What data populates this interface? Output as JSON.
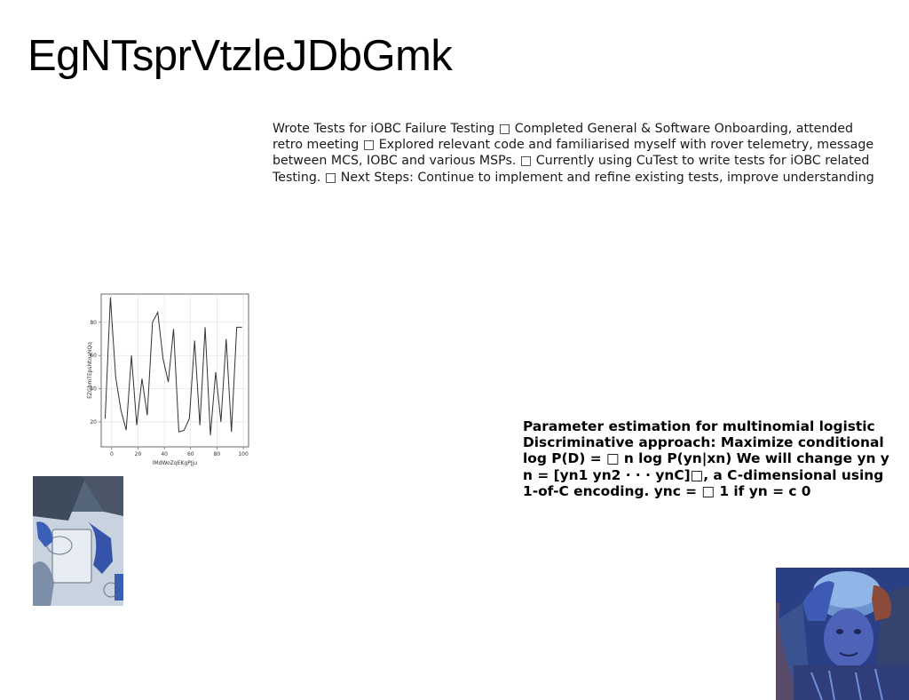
{
  "slide": {
    "title": "EgNTsprVtzleJDbGmk",
    "body_text": "Wrote Tests for iOBC Failure Testing □ Completed General & Software Onboarding, attended retro meeting □ Explored relevant code and familiarised myself with rover telemetry, message between MCS, IOBC and various MSPs. □ Currently using CuTest to write tests for iOBC related Testing. □ Next Steps: Continue to implement and refine existing tests, improve understanding",
    "side_text": "Parameter estimation for multinomial logistic Discriminative approach: Maximize conditional log P(D) = □ n log P(yn|xn) We will change yn y n = [yn1 yn2 · · · ynC]□, a C-dimensional using 1-of-C encoding. ync = □ 1 if yn = c 0"
  },
  "chart_data": {
    "type": "line",
    "title": "",
    "xlabel": "lMdWoZqEKgPJju",
    "ylabel": "EZGbmTEpsNtoaNQq",
    "xlim": [
      -8,
      104
    ],
    "ylim": [
      5,
      97
    ],
    "xticks": [
      0,
      20,
      40,
      60,
      80,
      100
    ],
    "yticks": [
      20,
      40,
      60,
      80
    ],
    "grid": true,
    "series": [
      {
        "x": [
          -5,
          -1,
          3,
          7,
          11,
          15,
          19,
          23,
          27,
          31,
          35,
          39,
          43,
          47,
          51,
          55,
          59,
          63,
          67,
          71,
          75,
          79,
          83,
          87,
          91,
          95,
          99
        ],
        "y": [
          22,
          95,
          47,
          27,
          15,
          60,
          18,
          46,
          24,
          80,
          86,
          58,
          44,
          76,
          14,
          15,
          22,
          69,
          18,
          77,
          12,
          50,
          20,
          70,
          14,
          77,
          77
        ]
      }
    ]
  }
}
